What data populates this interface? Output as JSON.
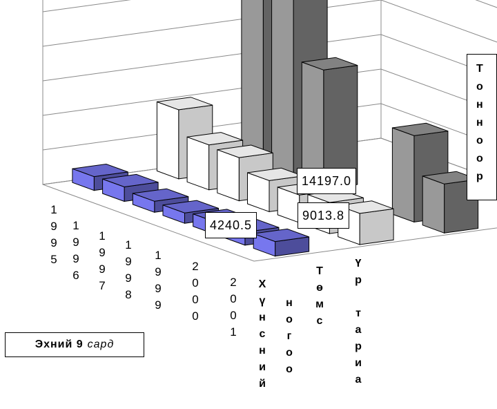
{
  "chart_data": {
    "type": "bar",
    "subtype": "3d-column",
    "categories": [
      "1995",
      "1996",
      "1997",
      "1998",
      "1999",
      "2000",
      "2001"
    ],
    "series": [
      {
        "name": "Хүнсний",
        "color": "#7777ee",
        "values": [
          4000,
          4200,
          3200,
          3000,
          3600,
          3800,
          4240.5
        ]
      },
      {
        "name": "ногоо",
        "color": "#ffffff",
        "values": [
          20000,
          13000,
          12500,
          9000,
          8000,
          9013.8,
          9013.8
        ]
      },
      {
        "name": "Төмс",
        "color": "#999999",
        "values": [
          49000,
          53000,
          34500,
          0,
          0,
          25000,
          14197.0
        ]
      },
      {
        "name": "Үр тариа",
        "color": "#555555",
        "values": [
          0,
          0,
          0,
          0,
          0,
          0,
          0
        ]
      }
    ],
    "ylim": [
      0,
      60000
    ],
    "yticks": [
      "0",
      "10000",
      "20000",
      "30000",
      "40000",
      "50000",
      "60000"
    ],
    "ylabel": "Тонноор",
    "data_labels": [
      "14197.0",
      "9013.8",
      "4240.5"
    ],
    "caption_bold": "Эхний 9",
    "caption_italic": "сард"
  }
}
